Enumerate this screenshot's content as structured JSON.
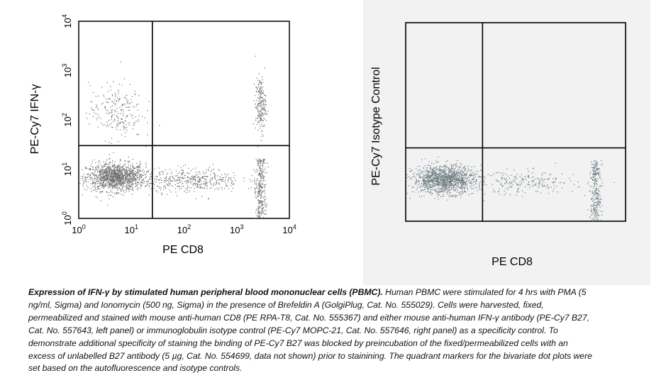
{
  "chart_data": [
    {
      "type": "scatter",
      "panel": "left",
      "xlabel": "PE CD8",
      "ylabel": "PE-Cy7 IFN-γ",
      "xscale": "log",
      "yscale": "log",
      "xlim": [
        1,
        10000
      ],
      "ylim": [
        1,
        10000
      ],
      "x_ticks": [
        {
          "base": "10",
          "exp": "0"
        },
        {
          "base": "10",
          "exp": "1"
        },
        {
          "base": "10",
          "exp": "2"
        },
        {
          "base": "10",
          "exp": "3"
        },
        {
          "base": "10",
          "exp": "4"
        }
      ],
      "y_ticks": [
        {
          "base": "10",
          "exp": "0"
        },
        {
          "base": "10",
          "exp": "1"
        },
        {
          "base": "10",
          "exp": "2"
        },
        {
          "base": "10",
          "exp": "3"
        },
        {
          "base": "10",
          "exp": "4"
        }
      ],
      "quadrant_markers": {
        "x": 25,
        "y": 30
      },
      "dot_color": "#6e6e6e",
      "populations": [
        {
          "label": "CD8- IFN-γ-",
          "center_x": 5,
          "center_y": 7,
          "relative_density": "very high"
        },
        {
          "label": "CD8+ IFN-γ-",
          "center_x": 2800,
          "center_y": 6,
          "relative_density": "medium"
        },
        {
          "label": "CD8+ IFN-γ+",
          "center_x": 2800,
          "center_y": 200,
          "relative_density": "low"
        },
        {
          "label": "CD8- IFN-γ+",
          "center_x": 5,
          "center_y": 150,
          "relative_density": "low"
        },
        {
          "label": "CD8 intermediate",
          "center_x": 150,
          "center_y": 6,
          "relative_density": "low"
        }
      ]
    },
    {
      "type": "scatter",
      "panel": "right",
      "xlabel": "PE CD8",
      "ylabel": "PE-Cy7 Isotype Control",
      "xscale": "log",
      "yscale": "log",
      "xlim": [
        1,
        10000
      ],
      "ylim": [
        1,
        10000
      ],
      "quadrant_markers": {
        "x": 25,
        "y": 30
      },
      "dot_color": "#6d7b80",
      "populations": [
        {
          "label": "CD8- isotype",
          "center_x": 5,
          "center_y": 7,
          "relative_density": "very high"
        },
        {
          "label": "CD8+ isotype",
          "center_x": 2800,
          "center_y": 6,
          "relative_density": "medium"
        },
        {
          "label": "CD8 intermediate",
          "center_x": 150,
          "center_y": 6,
          "relative_density": "low"
        }
      ]
    }
  ],
  "caption": {
    "title": "Expression of IFN-γ by stimulated human peripheral blood mononuclear cells (PBMC).",
    "body": "Human PBMC were stimulated for 4 hrs with PMA (5 ng/ml, Sigma) and Ionomycin (500 ng, Sigma) in the presence of Brefeldin A (GolgiPlug, Cat. No. 555029). Cells were harvested, fixed, permeabilized and stained with mouse anti-human CD8 (PE RPA-T8, Cat. No. 555367) and either mouse anti-human IFN-γ antibody (PE-Cy7 B27, Cat. No. 557643, left panel) or immunoglobulin isotype control (PE-Cy7 MOPC-21, Cat. No. 557646, right panel) as a specificity control. To demonstrate additional specificity of staining the binding of PE-Cy7 B27 was blocked by preincubation of the fixed/permeabilized cells with an excess of unlabelled B27 antibody (5 µg, Cat. No. 554699, data not shown) prior to stainining. The quadrant markers for the bivariate dot plots were set based on the autofluorescence and isotype controls."
  }
}
